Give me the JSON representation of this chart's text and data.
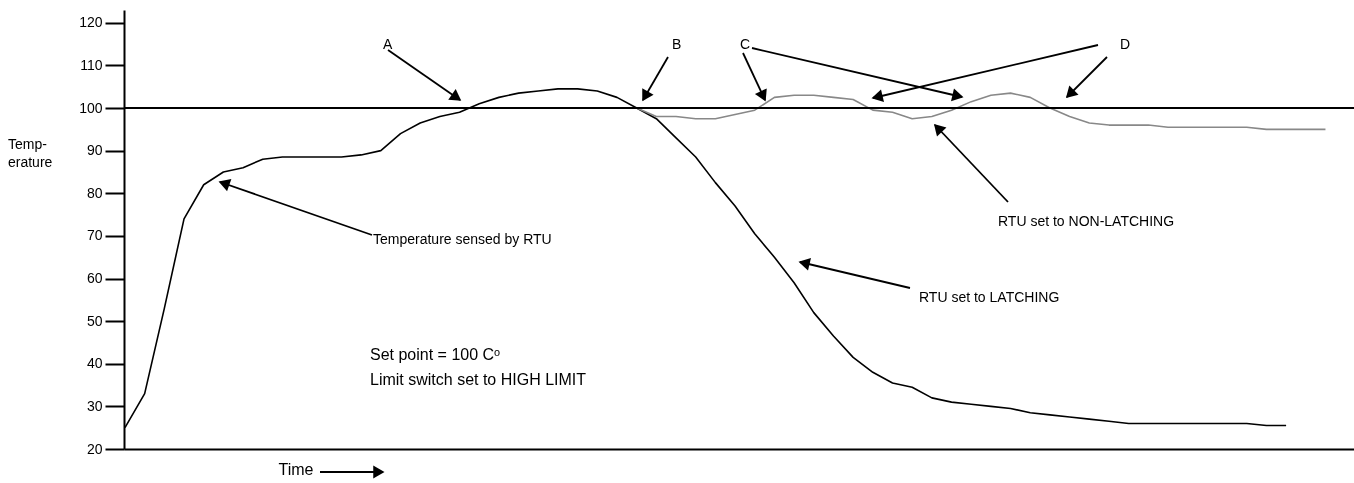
{
  "chart_data": {
    "type": "line",
    "xlabel": "Time",
    "ylabel": "Temp-\nerature",
    "categories": [
      null,
      null,
      null,
      null,
      null,
      null,
      null,
      null,
      null,
      null,
      null,
      null,
      null,
      null,
      null,
      null,
      null,
      null,
      null,
      null,
      null,
      null,
      null,
      null,
      null,
      null,
      null,
      null,
      null,
      null,
      null,
      null,
      null,
      null,
      null,
      null,
      null,
      null,
      null,
      null,
      null,
      null,
      null,
      null,
      null,
      null,
      null,
      null,
      null,
      null,
      null,
      null,
      null,
      null,
      null,
      null,
      null,
      null,
      null,
      null,
      null,
      null
    ],
    "series": [
      {
        "color": "#000000",
        "values": [
          25,
          33,
          53,
          74,
          82,
          85,
          86,
          88,
          88.5,
          88.5,
          88.5,
          88.5,
          89,
          90,
          94,
          96.5,
          98,
          99,
          101,
          102.5,
          103.5,
          104,
          104.5,
          104.5,
          104,
          102.5,
          100,
          97.5,
          93,
          88.5,
          82.5,
          77,
          70.5,
          65,
          59,
          52,
          46.5,
          41.5,
          38,
          35.5,
          34.5,
          32,
          31,
          30.5,
          30,
          29.5,
          28.5,
          28,
          27.5,
          27,
          26.5,
          26,
          26,
          26,
          26,
          26,
          26,
          26,
          25.5,
          25.5,
          null,
          null
        ]
      },
      {
        "color": "#888888",
        "values": [
          null,
          null,
          null,
          null,
          null,
          null,
          null,
          null,
          null,
          null,
          null,
          null,
          null,
          null,
          null,
          null,
          null,
          null,
          null,
          null,
          null,
          null,
          null,
          null,
          null,
          null,
          100,
          98,
          98,
          97.5,
          97.5,
          98.5,
          99.5,
          102.5,
          103,
          103,
          102.5,
          102,
          99.5,
          99,
          97.5,
          98,
          99.5,
          101.5,
          103,
          103.5,
          102.5,
          100,
          98,
          96.5,
          96,
          96,
          96,
          95.5,
          95.5,
          95.5,
          95.5,
          95.5,
          95,
          95,
          95,
          95
        ]
      }
    ],
    "ylim": [
      20,
      123
    ],
    "yticks": [
      20,
      30,
      40,
      50,
      60,
      70,
      80,
      90,
      100,
      110,
      120
    ],
    "ref_lines": [
      {
        "axis": "y",
        "value": 100,
        "color": "#000000"
      }
    ],
    "annotations": [
      "A",
      "B",
      "C",
      "D",
      "Temperature sensed by RTU",
      "RTU set to LATCHING",
      "RTU set to NON-LATCHING",
      "Set point = 100  Cᵒ",
      "Limit switch set to HIGH LIMIT"
    ],
    "grid": false,
    "marker": "none",
    "line_style": "solid",
    "tick_labels": "y"
  }
}
